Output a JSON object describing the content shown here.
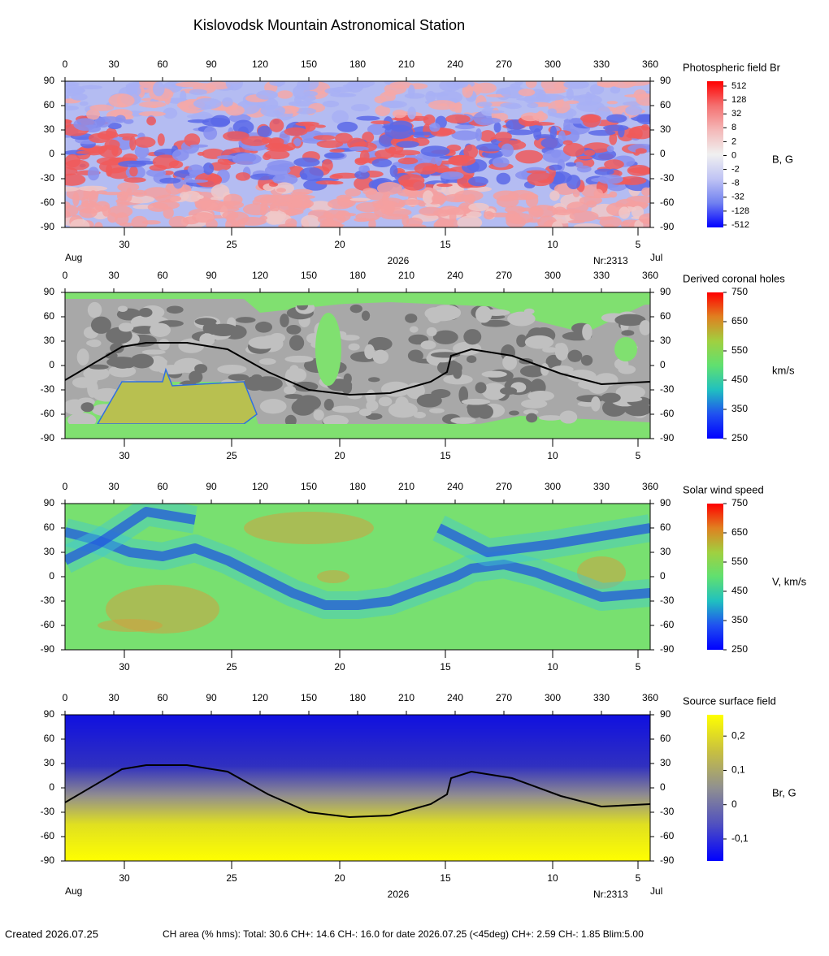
{
  "title": "Kislovodsk Mountain Astronomical Station",
  "footer": {
    "created": "Created  2026.07.25",
    "info": "CH area (% hms): Total: 30.6 CH+: 14.6   CH-: 16.0 for date 2026.07.25 (<45deg) CH+: 2.59    CH-: 1.85 Blim:5.00"
  },
  "chart_data": [
    {
      "type": "heatmap",
      "colorbar_title": "Photospheric field Br",
      "colorbar_unit": "B, G",
      "colormap": [
        "#ff0000",
        "#f47070",
        "#f4b8b8",
        "#f0f0f0",
        "#c0c4f4",
        "#7080f0",
        "#0000ff"
      ],
      "colorbar_ticks": [
        512,
        128,
        32,
        8,
        2,
        0,
        -2,
        -8,
        -32,
        -128,
        -512
      ],
      "xlim": [
        0,
        360
      ],
      "xticks": [
        0,
        30,
        60,
        90,
        120,
        150,
        180,
        210,
        240,
        270,
        300,
        330,
        360
      ],
      "ylim": [
        -90,
        90
      ],
      "yticks": [
        90,
        60,
        30,
        0,
        -30,
        -60,
        -90
      ],
      "date_ticks": [
        {
          "value": 36.5,
          "label": "30"
        },
        {
          "value": 102.5,
          "label": "25"
        },
        {
          "value": 169,
          "label": "20"
        },
        {
          "value": 234,
          "label": "15"
        },
        {
          "value": 300,
          "label": "10"
        },
        {
          "value": 352.5,
          "label": "5"
        }
      ],
      "bottom_labels": {
        "left": "Aug",
        "center": "2026",
        "note": "Nr:2313",
        "right": "Jul"
      }
    },
    {
      "type": "heatmap",
      "colorbar_title": "Derived coronal holes",
      "colorbar_unit": "km/s",
      "colormap": [
        "#ff0000",
        "#e08020",
        "#a0d040",
        "#60e070",
        "#20c0c0",
        "#2050f0",
        "#0000ff"
      ],
      "clim": [
        250,
        750
      ],
      "colorbar_ticks": [
        750,
        650,
        550,
        450,
        350,
        250
      ],
      "xlim": [
        0,
        360
      ],
      "xticks": [
        0,
        30,
        60,
        90,
        120,
        150,
        180,
        210,
        240,
        270,
        300,
        330,
        360
      ],
      "ylim": [
        -90,
        90
      ],
      "yticks": [
        90,
        60,
        30,
        0,
        -30,
        -60,
        -90
      ],
      "date_ticks": [
        {
          "value": 36.5,
          "label": "30"
        },
        {
          "value": 102.5,
          "label": "25"
        },
        {
          "value": 169,
          "label": "20"
        },
        {
          "value": 234,
          "label": "15"
        },
        {
          "value": 300,
          "label": "10"
        },
        {
          "value": 352.5,
          "label": "5"
        }
      ],
      "x": [
        0,
        35,
        50,
        75,
        100,
        125,
        150,
        175,
        200,
        225,
        235,
        237.5,
        250,
        275,
        305,
        330,
        360
      ],
      "values": [
        -18,
        23,
        28,
        28,
        20,
        -8,
        -30,
        -36,
        -34,
        -20,
        -8,
        12,
        20,
        12,
        -10,
        -23,
        -20
      ]
    },
    {
      "type": "heatmap",
      "colorbar_title": "Solar wind speed",
      "colorbar_unit": "V, km/s",
      "colormap": [
        "#ff0000",
        "#e08020",
        "#a0d040",
        "#60e070",
        "#20c0c0",
        "#2050f0",
        "#0000ff"
      ],
      "clim": [
        250,
        750
      ],
      "colorbar_ticks": [
        750,
        650,
        550,
        450,
        350,
        250
      ],
      "xlim": [
        0,
        360
      ],
      "xticks": [
        0,
        30,
        60,
        90,
        120,
        150,
        180,
        210,
        240,
        270,
        300,
        330,
        360
      ],
      "ylim": [
        -90,
        90
      ],
      "yticks": [
        90,
        60,
        30,
        0,
        -30,
        -60,
        -90
      ],
      "date_ticks": [
        {
          "value": 36.5,
          "label": "30"
        },
        {
          "value": 102.5,
          "label": "25"
        },
        {
          "value": 169,
          "label": "20"
        },
        {
          "value": 234,
          "label": "15"
        },
        {
          "value": 300,
          "label": "10"
        },
        {
          "value": 352.5,
          "label": "5"
        }
      ]
    },
    {
      "type": "heatmap",
      "colorbar_title": "Source surface field",
      "colorbar_unit": "Br, G",
      "colormap": [
        "#ffff00",
        "#c8c040",
        "#909090",
        "#5050c0",
        "#0000ff"
      ],
      "clim": [
        -0.164,
        0.262
      ],
      "colorbar_ticks": [
        {
          "value": 0.2,
          "label": "0,2"
        },
        {
          "value": 0.1,
          "label": "0,1"
        },
        0,
        {
          "value": -0.1,
          "label": "-0,1"
        }
      ],
      "xlim": [
        0,
        360
      ],
      "xticks": [
        0,
        30,
        60,
        90,
        120,
        150,
        180,
        210,
        240,
        270,
        300,
        330,
        360
      ],
      "ylim": [
        -90,
        90
      ],
      "yticks": [
        90,
        60,
        30,
        0,
        -30,
        -60,
        -90
      ],
      "date_ticks": [
        {
          "value": 36.5,
          "label": "30"
        },
        {
          "value": 102.5,
          "label": "25"
        },
        {
          "value": 169,
          "label": "20"
        },
        {
          "value": 234,
          "label": "15"
        },
        {
          "value": 300,
          "label": "10"
        },
        {
          "value": 352.5,
          "label": "5"
        }
      ],
      "bottom_labels": {
        "left": "Aug",
        "center": "2026",
        "note": "Nr:2313",
        "right": "Jul"
      },
      "x": [
        0,
        35,
        50,
        75,
        100,
        125,
        150,
        175,
        200,
        225,
        235,
        237.5,
        250,
        275,
        305,
        330,
        360
      ],
      "values": [
        -18,
        23,
        28,
        28,
        20,
        -8,
        -30,
        -36,
        -34,
        -20,
        -8,
        12,
        20,
        12,
        -10,
        -23,
        -20
      ]
    }
  ]
}
